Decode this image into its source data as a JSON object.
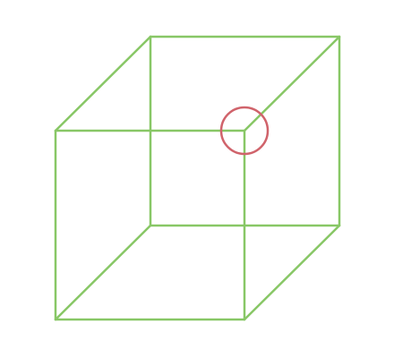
{
  "figure": {
    "type": "wireframe-cube",
    "colors": {
      "background": "#ffffff",
      "cube_edge": "#88c766",
      "highlight_ring": "#d0636b"
    },
    "edges": [
      "front-top-edge",
      "front-bottom-edge",
      "front-left-edge",
      "front-right-edge",
      "back-top-edge",
      "back-bottom-edge",
      "back-left-edge",
      "back-right-edge",
      "top-left-connector",
      "top-right-connector",
      "bottom-left-connector",
      "bottom-right-connector"
    ],
    "highlight": {
      "shape": "circle",
      "marks": "front-top-right-vertex"
    }
  }
}
